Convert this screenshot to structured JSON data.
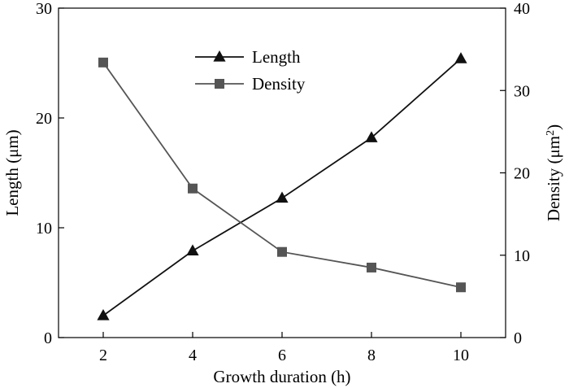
{
  "chart_data": {
    "type": "line",
    "title": "",
    "xlabel": "Growth duration (h)",
    "ylabel_left": "Length (μm)",
    "ylabel_right_main": "Density (μm",
    "ylabel_right_sup": "2",
    "ylabel_right_close": ")",
    "xlim": [
      1,
      11
    ],
    "ylim_left": [
      0,
      30
    ],
    "ylim_right": [
      0,
      40
    ],
    "xticks": [
      2,
      4,
      6,
      8,
      10
    ],
    "yticks_left": [
      0,
      10,
      20,
      30
    ],
    "yticks_right": [
      0,
      10,
      20,
      30,
      40
    ],
    "legend_position": "top-center",
    "grid": false,
    "series": [
      {
        "name": "Length",
        "axis": "left",
        "marker": "triangle",
        "color": "#111111",
        "x": [
          2,
          4,
          6,
          8,
          10
        ],
        "y": [
          2.0,
          7.9,
          12.7,
          18.2,
          25.4
        ]
      },
      {
        "name": "Density",
        "axis": "right",
        "marker": "square",
        "color": "#555555",
        "x": [
          2,
          4,
          6,
          8,
          10
        ],
        "y": [
          33.4,
          18.1,
          10.4,
          8.5,
          6.1
        ]
      }
    ]
  }
}
